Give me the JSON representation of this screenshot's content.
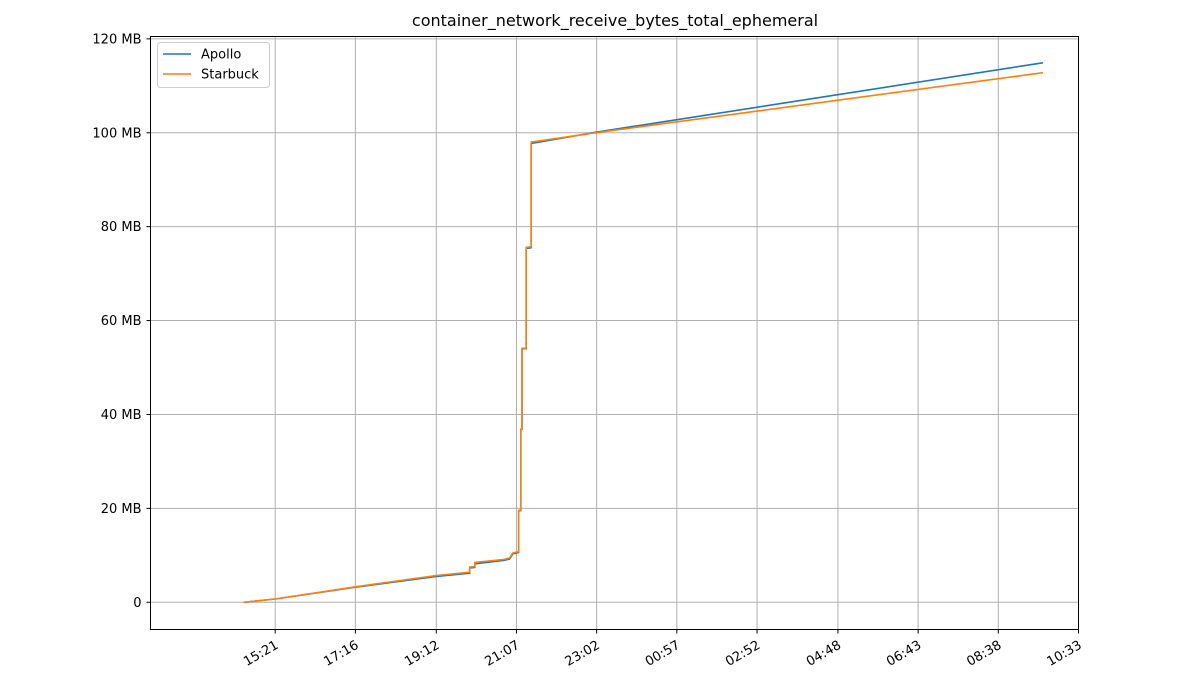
{
  "chart_data": {
    "type": "line",
    "title": "container_network_receive_bytes_total_ephemeral",
    "xlabel": "",
    "ylabel": "",
    "x_tick_labels": [
      "15:21",
      "17:16",
      "19:12",
      "21:07",
      "23:02",
      "00:57",
      "02:52",
      "04:48",
      "06:43",
      "08:38",
      "10:33"
    ],
    "x_ticks_hours": [
      15.35,
      17.267,
      19.2,
      21.117,
      23.033,
      24.95,
      26.867,
      28.8,
      30.717,
      32.633,
      34.55
    ],
    "xlim_hours": [
      12.37,
      34.55
    ],
    "y_tick_labels": [
      "0",
      "20 MB",
      "40 MB",
      "60 MB",
      "80 MB",
      "100 MB",
      "120 MB"
    ],
    "y_ticks": [
      0,
      20,
      40,
      60,
      80,
      100,
      120
    ],
    "ylim": [
      -5.8,
      120.5
    ],
    "y_unit": "MB",
    "grid": true,
    "legend_position": "top-left",
    "series": [
      {
        "name": "Apollo",
        "color": "#1f77b4",
        "points": [
          [
            14.6,
            0.0
          ],
          [
            15.35,
            0.7
          ],
          [
            17.27,
            3.2
          ],
          [
            19.2,
            5.5
          ],
          [
            20.0,
            6.2
          ],
          [
            20.0,
            7.3
          ],
          [
            20.12,
            7.4
          ],
          [
            20.12,
            8.2
          ],
          [
            20.8,
            8.9
          ],
          [
            20.95,
            9.2
          ],
          [
            21.03,
            10.3
          ],
          [
            21.17,
            10.6
          ],
          [
            21.17,
            19.5
          ],
          [
            21.22,
            19.5
          ],
          [
            21.22,
            36.8
          ],
          [
            21.25,
            36.8
          ],
          [
            21.25,
            54.0
          ],
          [
            21.35,
            54.0
          ],
          [
            21.35,
            75.4
          ],
          [
            21.47,
            75.5
          ],
          [
            21.47,
            97.7
          ],
          [
            23.0,
            100.1
          ],
          [
            33.7,
            114.9
          ]
        ]
      },
      {
        "name": "Starbuck",
        "color": "#ff7f0e",
        "points": [
          [
            14.6,
            0.0
          ],
          [
            15.35,
            0.7
          ],
          [
            17.27,
            3.3
          ],
          [
            19.2,
            5.7
          ],
          [
            20.0,
            6.4
          ],
          [
            20.0,
            7.5
          ],
          [
            20.12,
            7.6
          ],
          [
            20.12,
            8.5
          ],
          [
            20.8,
            9.1
          ],
          [
            20.95,
            9.4
          ],
          [
            21.03,
            10.5
          ],
          [
            21.17,
            10.8
          ],
          [
            21.17,
            19.6
          ],
          [
            21.22,
            19.6
          ],
          [
            21.22,
            36.9
          ],
          [
            21.25,
            36.9
          ],
          [
            21.25,
            54.1
          ],
          [
            21.35,
            54.1
          ],
          [
            21.35,
            75.6
          ],
          [
            21.47,
            75.7
          ],
          [
            21.47,
            98.0
          ],
          [
            23.0,
            100.0
          ],
          [
            33.7,
            112.8
          ]
        ]
      }
    ]
  }
}
